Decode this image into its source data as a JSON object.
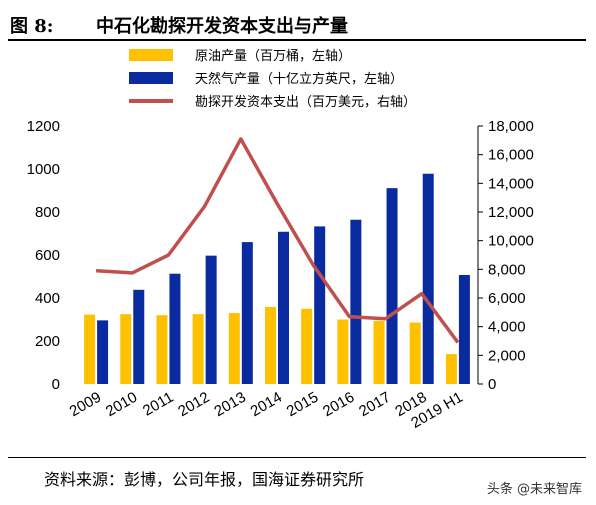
{
  "header": {
    "figure_label": "图 8:",
    "title": "中石化勘探开发资本支出与产量"
  },
  "footer": {
    "source": "资料来源：彭博，公司年报，国海证券研究所",
    "watermark": "头条 @未来智库"
  },
  "chart_data": {
    "type": "bar",
    "categories": [
      "2009",
      "2010",
      "2011",
      "2012",
      "2013",
      "2014",
      "2015",
      "2016",
      "2017",
      "2018",
      "2019 H1"
    ],
    "series": [
      {
        "name": "原油产量（百万桶，左轴）",
        "type": "bar",
        "axis": "left",
        "color": "#FFC000",
        "values": [
          323,
          325,
          320,
          325,
          330,
          358,
          350,
          300,
          293,
          286,
          139
        ]
      },
      {
        "name": "天然气产量（十亿立方英尺，左轴）",
        "type": "bar",
        "axis": "left",
        "color": "#0A2BA0",
        "values": [
          296,
          438,
          513,
          597,
          660,
          708,
          733,
          764,
          911,
          978,
          507
        ]
      },
      {
        "name": "勘探开发资本支出（百万美元，右轴）",
        "type": "line",
        "axis": "right",
        "color": "#C0504D",
        "values": [
          7900,
          7750,
          9000,
          12400,
          17100,
          12600,
          8300,
          4700,
          4550,
          6300,
          2900
        ]
      }
    ],
    "left_axis": {
      "ylim": [
        0,
        1200
      ],
      "ticks": [
        "0",
        "200",
        "400",
        "600",
        "800",
        "1000",
        "1200"
      ]
    },
    "right_axis": {
      "ylim": [
        0,
        18000
      ],
      "ticks": [
        "0",
        "2,000",
        "4,000",
        "6,000",
        "8,000",
        "10,000",
        "12,000",
        "14,000",
        "16,000",
        "18,000"
      ]
    },
    "grid": false,
    "legend_position": "top"
  }
}
